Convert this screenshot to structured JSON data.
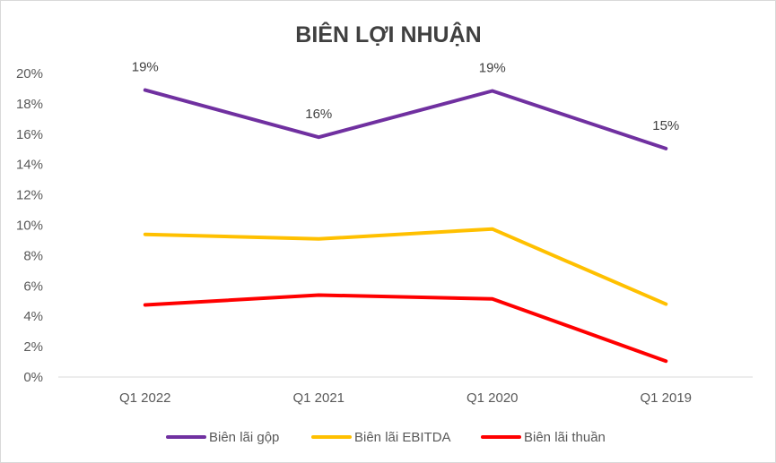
{
  "chart_data": {
    "type": "line",
    "title": "BIÊN LỢI NHUẬN",
    "xlabel": "",
    "ylabel": "",
    "categories": [
      "Q1 2022",
      "Q1 2021",
      "Q1 2020",
      "Q1 2019"
    ],
    "ylim": [
      0,
      20
    ],
    "yticks": [
      "0%",
      "2%",
      "4%",
      "6%",
      "8%",
      "10%",
      "12%",
      "14%",
      "16%",
      "18%",
      "20%"
    ],
    "grid": false,
    "legend_position": "bottom",
    "series": [
      {
        "name": "Biên lãi gộp",
        "color": "#7030a0",
        "values": [
          18.9,
          15.8,
          18.85,
          15.05
        ],
        "data_labels": [
          "19%",
          "16%",
          "19%",
          "15%"
        ]
      },
      {
        "name": "Biên lãi EBITDA",
        "color": "#ffc000",
        "values": [
          9.4,
          9.1,
          9.75,
          4.8
        ],
        "data_labels": []
      },
      {
        "name": "Biên lãi thuần",
        "color": "#ff0000",
        "values": [
          4.75,
          5.4,
          5.15,
          1.05
        ],
        "data_labels": []
      }
    ]
  }
}
